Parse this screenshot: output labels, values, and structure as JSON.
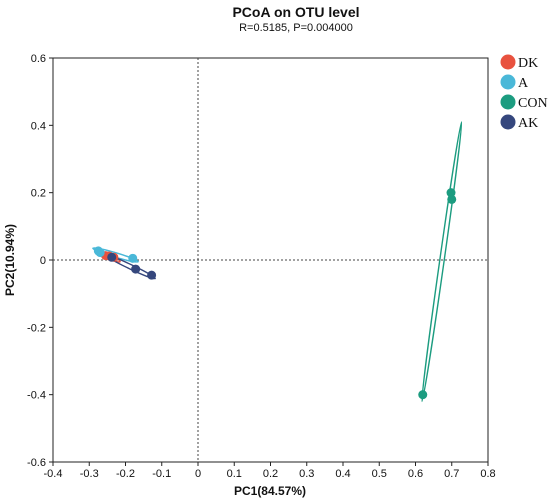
{
  "chart_data": {
    "type": "scatter",
    "title": "PCoA on OTU level",
    "subtitle": "R=0.5185, P=0.004000",
    "xlabel": "PC1(84.57%)",
    "ylabel": "PC2(10.94%)",
    "xlim": [
      -0.4,
      0.8
    ],
    "ylim": [
      -0.6,
      0.6
    ],
    "xticks": [
      -0.4,
      -0.3,
      -0.2,
      -0.1,
      0,
      0.1,
      0.2,
      0.3,
      0.4,
      0.5,
      0.6,
      0.7,
      0.8
    ],
    "yticks": [
      -0.6,
      -0.4,
      -0.2,
      0,
      0.2,
      0.4,
      0.6
    ],
    "xtick_labels": [
      "-0.4",
      "-0.3",
      "-0.2",
      "-0.1",
      "0",
      "0.1",
      "0.2",
      "0.3",
      "0.4",
      "0.5",
      "0.6",
      "0.7",
      "0.8"
    ],
    "ytick_labels": [
      "-0.6",
      "-0.4",
      "-0.2",
      "0",
      "0.2",
      "0.4",
      "0.6"
    ],
    "grid": false,
    "reference_lines": "dotted at x=0 and y=0",
    "legend_position": "right",
    "series": [
      {
        "name": "DK",
        "color": "#e8523f",
        "points": [
          [
            -0.255,
            0.013
          ],
          [
            -0.245,
            0.012
          ],
          [
            -0.232,
            0.008
          ]
        ],
        "ellipse": [
          [
            -0.285,
            0.03
          ],
          [
            -0.215,
            -0.005
          ]
        ]
      },
      {
        "name": "A",
        "color": "#4ab8d8",
        "points": [
          [
            -0.275,
            0.027
          ],
          [
            -0.27,
            0.022
          ],
          [
            -0.18,
            0.005
          ]
        ],
        "ellipse": [
          [
            -0.29,
            0.035
          ],
          [
            -0.165,
            -0.005
          ]
        ]
      },
      {
        "name": "CON",
        "color": "#1c9c80",
        "points": [
          [
            0.698,
            0.2
          ],
          [
            0.7,
            0.18
          ],
          [
            0.62,
            -0.4
          ]
        ],
        "ellipse": [
          [
            0.618,
            -0.42
          ],
          [
            0.727,
            0.41
          ]
        ]
      },
      {
        "name": "AK",
        "color": "#35477d",
        "points": [
          [
            -0.238,
            0.008
          ],
          [
            -0.172,
            -0.027
          ],
          [
            -0.128,
            -0.045
          ]
        ],
        "ellipse": [
          [
            -0.255,
            0.015
          ],
          [
            -0.118,
            -0.055
          ]
        ]
      }
    ]
  }
}
